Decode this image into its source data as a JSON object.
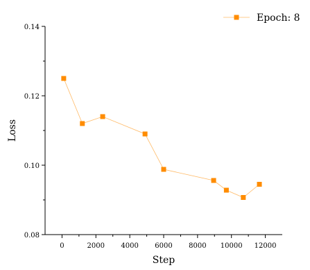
{
  "chart_data": {
    "type": "line",
    "title": "",
    "xlabel": "Step",
    "ylabel": "Loss",
    "xlim": [
      -1000,
      13000
    ],
    "ylim": [
      0.08,
      0.14
    ],
    "xticks": [
      0,
      2000,
      4000,
      6000,
      8000,
      10000,
      12000
    ],
    "yticks": [
      0.08,
      0.1,
      0.12,
      0.14
    ],
    "xtick_labels": [
      "0",
      "2000",
      "4000",
      "6000",
      "8000",
      "10000",
      "12000"
    ],
    "ytick_labels": [
      "0.08",
      "0.10",
      "0.12",
      "0.14"
    ],
    "grid": false,
    "legend": "top-right",
    "series": [
      {
        "name": "Epoch: 8",
        "color": "#ff8c00",
        "marker": "square",
        "x": [
          100,
          1200,
          2400,
          4900,
          6000,
          8950,
          9700,
          10700,
          11650
        ],
        "y": [
          0.125,
          0.112,
          0.114,
          0.109,
          0.0988,
          0.0956,
          0.0928,
          0.0907,
          0.0945
        ]
      }
    ]
  }
}
